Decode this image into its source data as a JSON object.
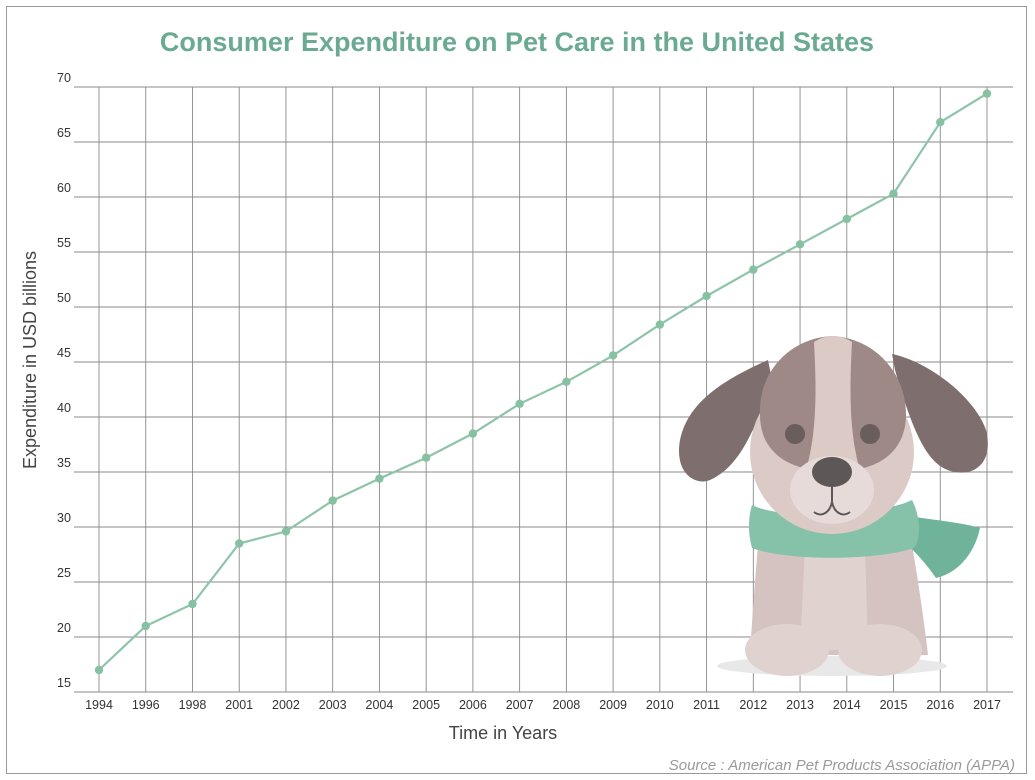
{
  "chart_data": {
    "type": "line",
    "title": "Consumer Expenditure on Pet Care in the United States",
    "xlabel": "Time in Years",
    "ylabel": "Expenditure in USD billions",
    "categories": [
      "1994",
      "1996",
      "1998",
      "2001",
      "2002",
      "2003",
      "2004",
      "2005",
      "2006",
      "2007",
      "2008",
      "2009",
      "2010",
      "2011",
      "2012",
      "2013",
      "2014",
      "2015",
      "2016",
      "2017"
    ],
    "series": [
      {
        "values": [
          17.0,
          21.0,
          23.0,
          28.5,
          29.6,
          32.4,
          34.4,
          36.3,
          38.5,
          41.2,
          43.2,
          45.6,
          48.4,
          51.0,
          53.4,
          55.7,
          58.0,
          60.3,
          66.8,
          69.4
        ]
      }
    ],
    "ylim": [
      15,
      70
    ],
    "yticks": [
      15,
      20,
      25,
      30,
      35,
      40,
      45,
      50,
      55,
      60,
      65,
      70
    ],
    "grid": true,
    "source": "Source : American Pet Products Association (APPA)",
    "colors": {
      "title": "#6aaa93",
      "line": "#8ec4a9",
      "marker": "#86c1a2",
      "grid": "#8a8a8a"
    },
    "decoration": {
      "icon": "puppy-with-green-scarf-icon"
    }
  }
}
